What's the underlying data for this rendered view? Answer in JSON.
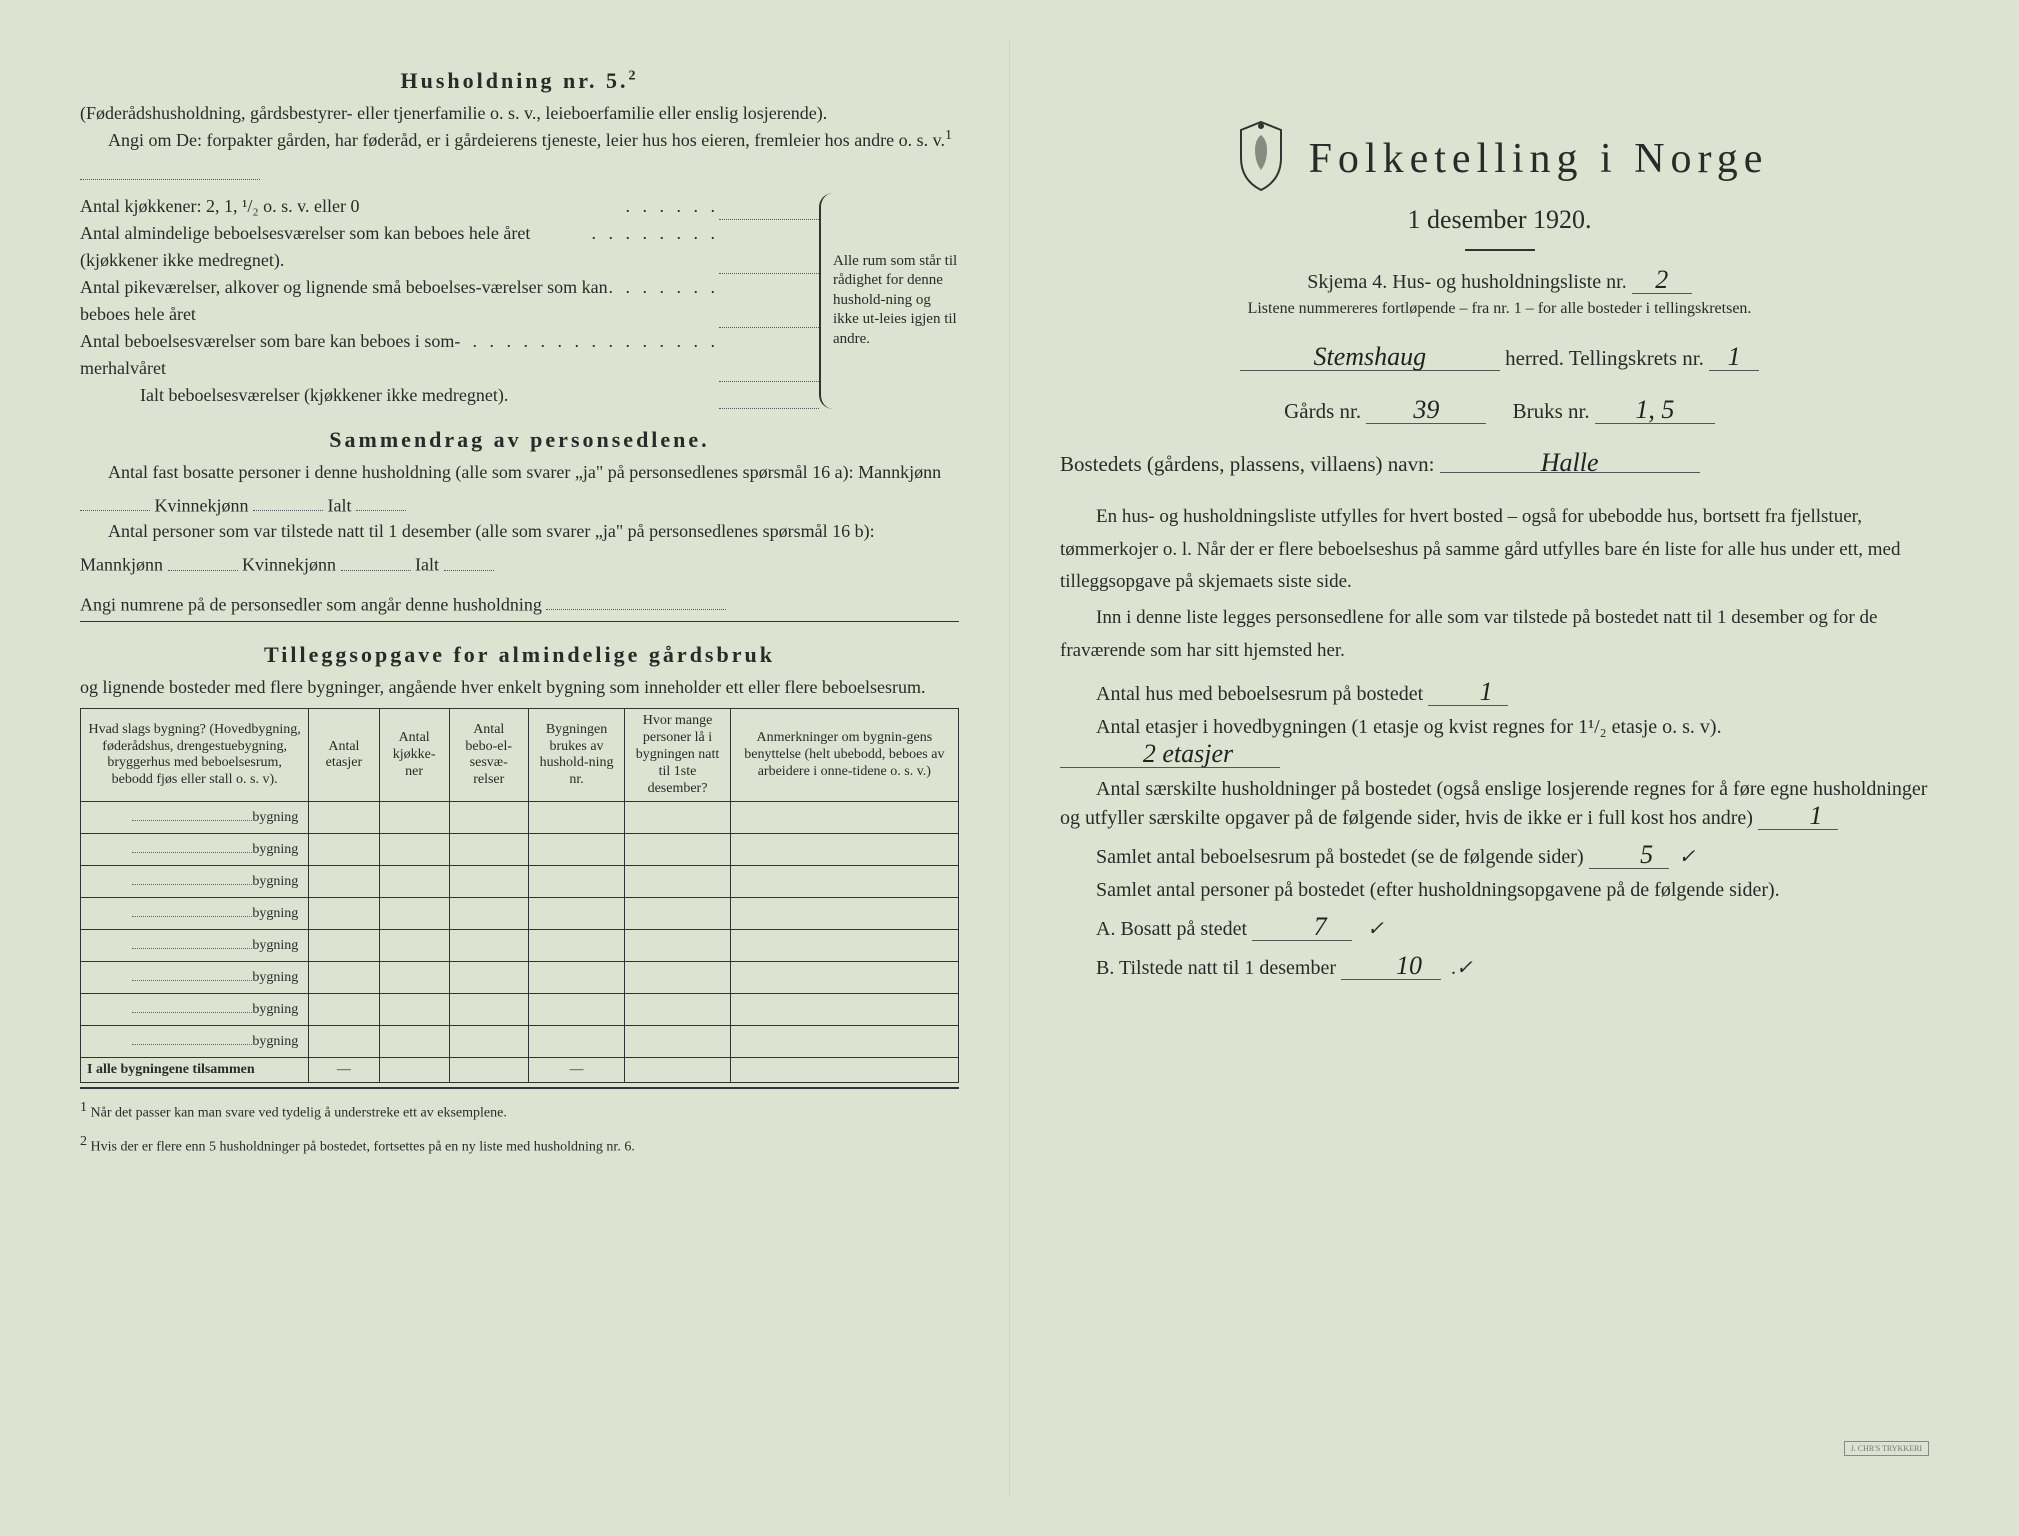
{
  "left": {
    "husholdning_title": "Husholdning nr. 5.",
    "husholdning_sup": "2",
    "husholdning_sub": "(Føderådshusholdning, gårdsbestyrer- eller tjenerfamilie o. s. v., leieboerfamilie eller enslig losjerende).",
    "angi_intro": "Angi om De:  forpakter gården, har føderåd, er i gårdeierens tjeneste, leier hus hos eieren, fremleier hos andre o. s. v.",
    "angi_sup": "1",
    "kjokken_line": "Antal kjøkkener: 2, 1, ¹/₂ o. s. v. eller 0",
    "rooms": [
      "Antal almindelige beboelsesværelser som kan beboes hele året (kjøkkener ikke medregnet).",
      "Antal pikeværelser, alkover og lignende små beboelses-værelser som kan beboes hele året",
      "Antal beboelsesværelser som bare kan beboes i som-merhalvåret"
    ],
    "rooms_total": "Ialt beboelsesværelser  (kjøkkener ikke medregnet).",
    "brace_text": "Alle rum som står til rådighet for denne hushold-ning og ikke ut-leies igjen til andre.",
    "sammendrag_title": "Sammendrag av personsedlene.",
    "samm_line1": "Antal fast bosatte personer i denne husholdning (alle som svarer „ja\" på personsedlenes spørsmål 16 a): Mannkjønn",
    "samm_kvinne": "Kvinnekjønn",
    "samm_ialt": "Ialt",
    "samm_line2": "Antal personer som var tilstede natt til 1 desember (alle som svarer „ja\" på personsedlenes spørsmål 16 b): Mannkjønn",
    "angi_numrene": "Angi numrene på de personsedler som angår denne husholdning",
    "tillegg_title": "Tilleggsopgave for almindelige gårdsbruk",
    "tillegg_sub": "og lignende bosteder med flere bygninger, angående hver enkelt bygning som inneholder ett eller flere beboelsesrum.",
    "table": {
      "headers": [
        "Hvad slags bygning?\n(Hovedbygning, føderådshus, drengestuebygning, bryggerhus med beboelsesrum, bebodd fjøs eller stall o. s. v).",
        "Antal etasjer",
        "Antal kjøkke-ner",
        "Antal bebo-el-sesvæ-relser",
        "Bygningen brukes av hushold-ning nr.",
        "Hvor mange personer lå i bygningen natt til 1ste desember?",
        "Anmerkninger om bygnin-gens benyttelse (helt ubebodd, beboes av arbeidere i onne-tidene o. s. v.)"
      ],
      "row_label": "bygning",
      "row_count": 8,
      "total_label": "I alle bygningene tilsammen"
    },
    "footnote1": "Når det passer kan man svare ved tydelig å understreke ett av eksemplene.",
    "footnote2": "Hvis der er flere enn 5 husholdninger på bostedet, fortsettes på en ny liste med husholdning nr. 6."
  },
  "right": {
    "title": "Folketelling i Norge",
    "subtitle": "1 desember 1920.",
    "skjema": "Skjema 4.  Hus- og husholdningsliste nr.",
    "skjema_nr": "2",
    "listene_note": "Listene nummereres fortløpende – fra nr. 1 – for alle bosteder i tellingskretsen.",
    "herred_value": "Stemshaug",
    "herred_label": "herred.   Tellingskrets nr.",
    "krets_nr": "1",
    "gards_label": "Gårds nr.",
    "gards_nr": "39",
    "bruks_label": "Bruks nr.",
    "bruks_nr": "1, 5",
    "bosted_label": "Bostedets (gårdens, plassens, villaens) navn:",
    "bosted_value": "Halle",
    "para1": "En hus- og husholdningsliste utfylles for hvert bosted – også for ubebodde hus, bortsett fra fjellstuer, tømmerkojer o. l.  Når der er flere beboelseshus på samme gård utfylles bare én liste for alle hus under ett, med tilleggsopgave på skjemaets siste side.",
    "para2": "Inn i denne liste legges personsedlene for alle som var tilstede på bostedet natt til 1 desember og for de fraværende som har sitt hjemsted her.",
    "antal_hus_label": "Antal hus med beboelsesrum på bostedet",
    "antal_hus_value": "1",
    "etasjer_label": "Antal etasjer i hovedbygningen (1 etasje og kvist regnes for 1¹/₂ etasje o. s. v).",
    "etasjer_value": "2 etasjer",
    "husholdninger_label": "Antal særskilte husholdninger på bostedet (også enslige losjerende regnes for å føre egne husholdninger og utfyller særskilte opgaver på de følgende sider, hvis de ikke er i full kost hos andre)",
    "husholdninger_value": "1",
    "samlet_rum_label": "Samlet antal beboelsesrum på bostedet (se de følgende sider)",
    "samlet_rum_value": "5",
    "samlet_pers_label": "Samlet antal personer på bostedet (efter husholdningsopgavene på de følgende sider).",
    "bosatt_label": "A.  Bosatt på stedet",
    "bosatt_value": "7",
    "tilstede_label": "B.  Tilstede natt til 1 desember",
    "tilstede_value": "10",
    "check_mark": "✓"
  },
  "colors": {
    "background": "#dde3d1",
    "text": "#2a2a2a",
    "handwriting": "#222222",
    "border": "#333333"
  }
}
